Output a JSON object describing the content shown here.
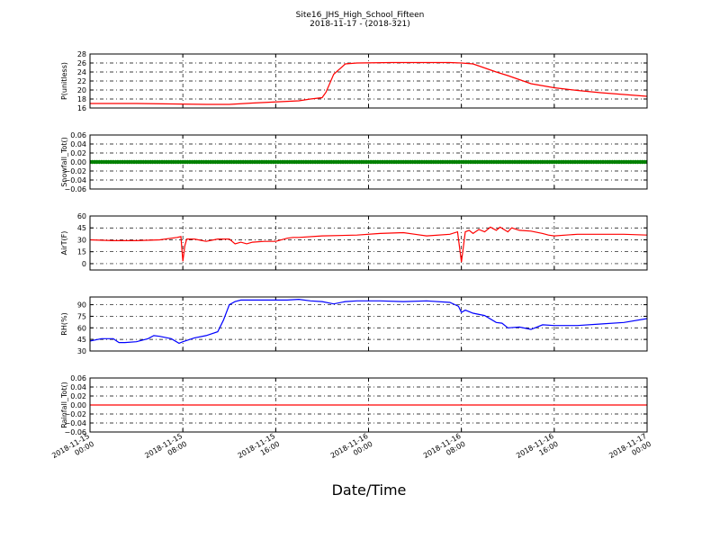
{
  "title": {
    "line1": "Site16_JHS_High_School_Fifteen",
    "line2": "2018-11-17 - (2018-321)"
  },
  "xlabel": "Date/Time",
  "x_ticks": [
    {
      "line1": "2018-11-15",
      "line2": "00:00"
    },
    {
      "line1": "2018-11-15",
      "line2": "08:00"
    },
    {
      "line1": "2018-11-15",
      "line2": "16:00"
    },
    {
      "line1": "2018-11-16",
      "line2": "00:00"
    },
    {
      "line1": "2018-11-16",
      "line2": "08:00"
    },
    {
      "line1": "2018-11-16",
      "line2": "16:00"
    },
    {
      "line1": "2018-11-17",
      "line2": "00:00"
    }
  ],
  "chart_data": [
    {
      "type": "line",
      "ylabel": "P(unitless)",
      "ylim": [
        16,
        28
      ],
      "yticks": [
        "16",
        "18",
        "20",
        "22",
        "24",
        "26",
        "28"
      ],
      "xlim": [
        "2018-11-15 00:00",
        "2018-11-17 00:00"
      ],
      "grid": true,
      "color": "#ff0000",
      "x": [
        "2018-11-15 00:00",
        "2018-11-15 04:00",
        "2018-11-15 10:00",
        "2018-11-15 12:00",
        "2018-11-15 14:00",
        "2018-11-15 18:00",
        "2018-11-15 19:00",
        "2018-11-15 20:00",
        "2018-11-15 20:20",
        "2018-11-15 21:00",
        "2018-11-15 22:00",
        "2018-11-15 23:00",
        "2018-11-16 02:00",
        "2018-11-16 05:00",
        "2018-11-16 07:00",
        "2018-11-16 08:00",
        "2018-11-16 09:00",
        "2018-11-16 11:00",
        "2018-11-16 12:00",
        "2018-11-16 14:00",
        "2018-11-16 16:00",
        "2018-11-16 18:00",
        "2018-11-16 20:00",
        "2018-11-16 22:00",
        "2018-11-17 00:00"
      ],
      "y": [
        17.0,
        17.0,
        16.8,
        16.8,
        17.1,
        17.6,
        18.0,
        18.3,
        19.5,
        23.5,
        25.8,
        26.0,
        26.1,
        26.1,
        26.1,
        26.0,
        25.8,
        24.0,
        23.2,
        21.4,
        20.5,
        19.9,
        19.4,
        19.0,
        18.6
      ]
    },
    {
      "type": "scatter",
      "ylabel": "Snowfall_Tot()",
      "ylim": [
        -0.06,
        0.06
      ],
      "yticks": [
        "−0.06",
        "−0.04",
        "−0.02",
        "0.00",
        "0.02",
        "0.04",
        "0.06"
      ],
      "xlim": [
        "2018-11-15 00:00",
        "2018-11-17 00:00"
      ],
      "grid": true,
      "color": "#008000",
      "constant_value": 0.0
    },
    {
      "type": "line",
      "ylabel": "AirT(F)",
      "ylim": [
        -8,
        60
      ],
      "yticks": [
        "0",
        "15",
        "30",
        "45",
        "60"
      ],
      "xlim": [
        "2018-11-15 00:00",
        "2018-11-17 00:00"
      ],
      "grid": true,
      "color": "#ff0000",
      "x": [
        "2018-11-15 00:00",
        "2018-11-15 02:00",
        "2018-11-15 04:00",
        "2018-11-15 06:00",
        "2018-11-15 07:30",
        "2018-11-15 07:50",
        "2018-11-15 08:00",
        "2018-11-15 08:10",
        "2018-11-15 08:20",
        "2018-11-15 09:00",
        "2018-11-15 10:00",
        "2018-11-15 11:00",
        "2018-11-15 12:00",
        "2018-11-15 12:30",
        "2018-11-15 13:00",
        "2018-11-15 13:30",
        "2018-11-15 14:00",
        "2018-11-15 15:00",
        "2018-11-15 16:00",
        "2018-11-15 17:00",
        "2018-11-15 17:30",
        "2018-11-15 18:00",
        "2018-11-15 20:00",
        "2018-11-15 23:00",
        "2018-11-16 01:00",
        "2018-11-16 03:00",
        "2018-11-16 04:00",
        "2018-11-16 05:00",
        "2018-11-16 07:00",
        "2018-11-16 07:40",
        "2018-11-16 08:00",
        "2018-11-16 08:20",
        "2018-11-16 08:40",
        "2018-11-16 09:00",
        "2018-11-16 09:30",
        "2018-11-16 10:00",
        "2018-11-16 10:30",
        "2018-11-16 11:00",
        "2018-11-16 11:20",
        "2018-11-16 12:00",
        "2018-11-16 12:20",
        "2018-11-16 13:00",
        "2018-11-16 14:00",
        "2018-11-16 15:00",
        "2018-11-16 15:30",
        "2018-11-16 16:00",
        "2018-11-16 17:00",
        "2018-11-16 18:00",
        "2018-11-16 20:00",
        "2018-11-16 22:00",
        "2018-11-17 00:00"
      ],
      "y": [
        30,
        29,
        29,
        30,
        33,
        34,
        3,
        22,
        31,
        31,
        28,
        31,
        31,
        25,
        27,
        25,
        27,
        28,
        28,
        32,
        33,
        33,
        35,
        36,
        38,
        39,
        37,
        35,
        37,
        40,
        2,
        40,
        42,
        38,
        43,
        40,
        46,
        42,
        46,
        40,
        45,
        42,
        41,
        38,
        36,
        35,
        36,
        37,
        37,
        37,
        36
      ]
    },
    {
      "type": "line",
      "ylabel": "RH(%)",
      "ylim": [
        30,
        100
      ],
      "yticks": [
        "30",
        "45",
        "60",
        "75",
        "90"
      ],
      "xlim": [
        "2018-11-15 00:00",
        "2018-11-17 00:00"
      ],
      "grid": true,
      "color": "#0000ff",
      "x": [
        "2018-11-15 00:00",
        "2018-11-15 01:00",
        "2018-11-15 02:00",
        "2018-11-15 02:30",
        "2018-11-15 03:00",
        "2018-11-15 04:00",
        "2018-11-15 05:00",
        "2018-11-15 05:30",
        "2018-11-15 06:00",
        "2018-11-15 07:00",
        "2018-11-15 07:40",
        "2018-11-15 08:00",
        "2018-11-15 09:00",
        "2018-11-15 10:00",
        "2018-11-15 11:00",
        "2018-11-15 11:30",
        "2018-11-15 12:00",
        "2018-11-15 12:30",
        "2018-11-15 13:00",
        "2018-11-15 14:00",
        "2018-11-15 15:00",
        "2018-11-15 17:00",
        "2018-11-15 18:00",
        "2018-11-15 19:00",
        "2018-11-15 20:00",
        "2018-11-15 21:00",
        "2018-11-15 22:00",
        "2018-11-15 23:00",
        "2018-11-16 01:00",
        "2018-11-16 03:00",
        "2018-11-16 05:00",
        "2018-11-16 07:00",
        "2018-11-16 07:45",
        "2018-11-16 08:00",
        "2018-11-16 08:20",
        "2018-11-16 09:00",
        "2018-11-16 10:00",
        "2018-11-16 11:00",
        "2018-11-16 11:30",
        "2018-11-16 12:00",
        "2018-11-16 13:00",
        "2018-11-16 14:00",
        "2018-11-16 15:00",
        "2018-11-16 16:00",
        "2018-11-16 18:00",
        "2018-11-16 20:00",
        "2018-11-16 22:00",
        "2018-11-17 00:00"
      ],
      "y": [
        43,
        46,
        46,
        41,
        41,
        42,
        46,
        50,
        49,
        46,
        40,
        42,
        47,
        50,
        55,
        70,
        90,
        94,
        96,
        96,
        96,
        96,
        97,
        95,
        94,
        91,
        94,
        95,
        95,
        94,
        95,
        93,
        88,
        80,
        83,
        79,
        76,
        67,
        66,
        60,
        61,
        58,
        64,
        63,
        63,
        65,
        67,
        72
      ]
    },
    {
      "type": "line",
      "ylabel": "Rainfall_Tot()",
      "ylim": [
        -0.06,
        0.06
      ],
      "yticks": [
        "−0.06",
        "−0.04",
        "−0.02",
        "0.00",
        "0.02",
        "0.04",
        "0.06"
      ],
      "xlim": [
        "2018-11-15 00:00",
        "2018-11-17 00:00"
      ],
      "grid": true,
      "color": "#ff0000",
      "constant_value": 0.0
    }
  ]
}
